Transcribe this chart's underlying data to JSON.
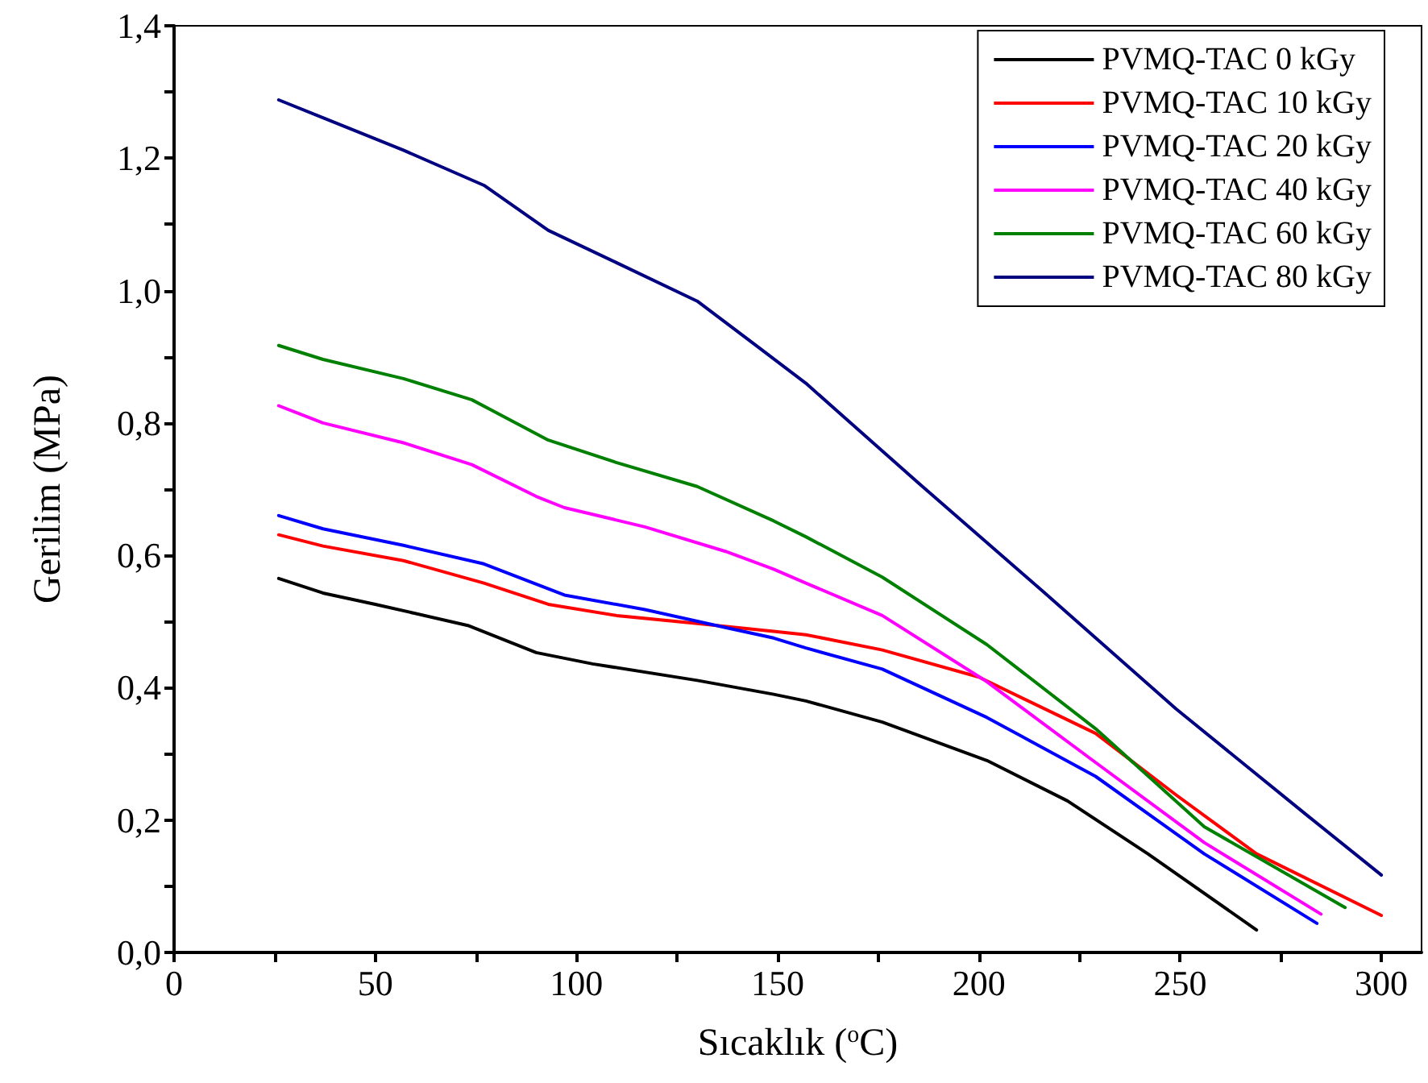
{
  "chart_data": {
    "type": "line",
    "xlabel": "Sıcaklık ($^{o}$C)",
    "ylabel": "Gerilim (MPa)",
    "xlim": [
      0,
      310
    ],
    "ylim": [
      0,
      1.4
    ],
    "xticks": [
      0,
      {
        "value": 25,
        "label": null
      },
      50,
      {
        "value": 75,
        "label": null
      },
      100,
      {
        "value": 125,
        "label": null
      },
      150,
      {
        "value": 175,
        "label": null
      },
      200,
      {
        "value": 225,
        "label": null
      },
      250,
      {
        "value": 275,
        "label": null
      },
      300
    ],
    "yticks": [
      {
        "value": 0,
        "label": "0,0"
      },
      {
        "value": 0.1,
        "label": null
      },
      {
        "value": 0.2,
        "label": "0,2"
      },
      {
        "value": 0.3,
        "label": null
      },
      {
        "value": 0.4,
        "label": "0,4"
      },
      {
        "value": 0.5,
        "label": null
      },
      {
        "value": 0.6,
        "label": "0,6"
      },
      {
        "value": 0.7,
        "label": null
      },
      {
        "value": 0.8,
        "label": "0,8"
      },
      {
        "value": 0.9,
        "label": null
      },
      {
        "value": 1.0,
        "label": "1,0"
      },
      {
        "value": 1.1,
        "label": null
      },
      {
        "value": 1.2,
        "label": "1,2"
      },
      {
        "value": 1.3,
        "label": null
      },
      {
        "value": 1.4,
        "label": "1,4"
      }
    ],
    "grid": false,
    "legend": "top right",
    "marker": "none",
    "line_style": "solid",
    "series": [
      {
        "name": "PVMQ-TAC 0 kGy",
        "color": "#000000",
        "x": [
          26,
          37,
          50,
          73,
          90,
          104,
          130,
          149,
          157,
          176,
          202,
          222,
          242,
          269
        ],
        "values": [
          0.565,
          0.543,
          0.526,
          0.494,
          0.453,
          0.436,
          0.411,
          0.39,
          0.38,
          0.348,
          0.29,
          0.229,
          0.149,
          0.034
        ]
      },
      {
        "name": "PVMQ-TAC 10 kGy",
        "color": "#ff0000",
        "x": [
          26,
          37,
          57,
          77,
          93,
          110,
          130,
          149,
          157,
          176,
          200,
          229,
          249,
          269,
          300
        ],
        "values": [
          0.631,
          0.614,
          0.592,
          0.558,
          0.526,
          0.509,
          0.497,
          0.485,
          0.48,
          0.457,
          0.416,
          0.331,
          0.238,
          0.149,
          0.056
        ]
      },
      {
        "name": "PVMQ-TAC 20 kGy",
        "color": "#0000ff",
        "x": [
          26,
          37,
          57,
          77,
          97,
          117,
          137,
          149,
          157,
          176,
          202,
          229,
          256,
          284
        ],
        "values": [
          0.66,
          0.64,
          0.615,
          0.587,
          0.54,
          0.518,
          0.491,
          0.475,
          0.46,
          0.428,
          0.355,
          0.266,
          0.149,
          0.044
        ]
      },
      {
        "name": "PVMQ-TAC 40 kGy",
        "color": "#ff00ff",
        "x": [
          26,
          37,
          57,
          74,
          90,
          97,
          117,
          137,
          149,
          157,
          176,
          202,
          229,
          256,
          285
        ],
        "values": [
          0.826,
          0.8,
          0.77,
          0.737,
          0.689,
          0.672,
          0.643,
          0.606,
          0.579,
          0.558,
          0.509,
          0.409,
          0.287,
          0.166,
          0.058
        ]
      },
      {
        "name": "PVMQ-TAC 60 kGy",
        "color": "#008000",
        "x": [
          26,
          37,
          57,
          74,
          93,
          110,
          130,
          149,
          157,
          176,
          202,
          229,
          256,
          291
        ],
        "values": [
          0.917,
          0.896,
          0.867,
          0.835,
          0.774,
          0.74,
          0.704,
          0.652,
          0.628,
          0.567,
          0.465,
          0.338,
          0.19,
          0.068
        ]
      },
      {
        "name": "PVMQ-TAC 80 kGy",
        "color": "#000080",
        "x": [
          26,
          37,
          57,
          77,
          93,
          110,
          130,
          144,
          157,
          185,
          216,
          249,
          282,
          300
        ],
        "values": [
          1.288,
          1.261,
          1.212,
          1.159,
          1.091,
          1.042,
          0.984,
          0.92,
          0.86,
          0.709,
          0.545,
          0.368,
          0.205,
          0.117
        ]
      }
    ]
  }
}
